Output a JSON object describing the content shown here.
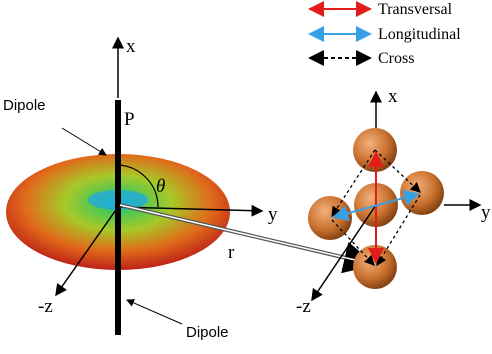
{
  "legend": [
    {
      "label": "Transversal"
    },
    {
      "label": "Longitudinal"
    },
    {
      "label": "Cross"
    }
  ],
  "left_figure": {
    "axis_x": "x",
    "axis_y": "y",
    "axis_z": "-z",
    "dipole_moment": "P",
    "angle": "θ",
    "distance": "r",
    "dipole_labels": [
      "Dipole",
      "Dipole"
    ]
  },
  "right_figure": {
    "axis_x": "x",
    "axis_y": "y",
    "axis_z": "-z"
  }
}
